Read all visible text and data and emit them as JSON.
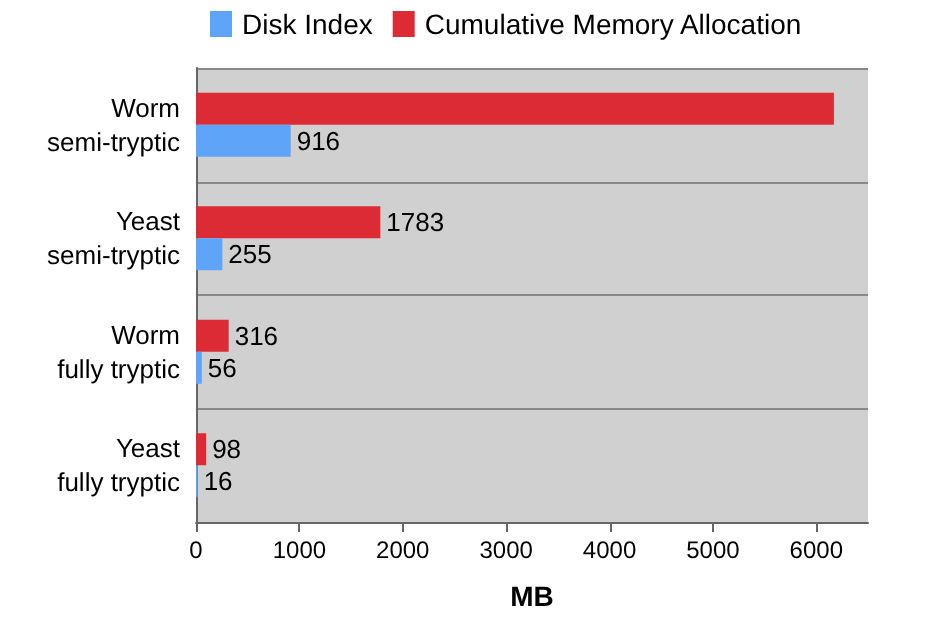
{
  "chart_data": {
    "type": "bar",
    "orientation": "horizontal",
    "xlabel": "MB",
    "categories": [
      "Worm\nsemi-tryptic",
      "Yeast\nsemi-tryptic",
      "Worm\nfully tryptic",
      "Yeast\nfully tryptic"
    ],
    "series": [
      {
        "name": "Disk Index",
        "color": "#5ea4f8",
        "values": [
          916,
          255,
          56,
          16
        ],
        "value_labels": [
          "916",
          "255",
          "56",
          "16"
        ]
      },
      {
        "name": "Cumulative Memory Allocation",
        "color": "#dc2b34",
        "values": [
          6170,
          1783,
          316,
          98
        ],
        "value_labels": [
          null,
          "1783",
          "316",
          "98"
        ]
      }
    ],
    "xlim": [
      0,
      6500
    ],
    "xticks": [
      0,
      1000,
      2000,
      3000,
      4000,
      5000,
      6000
    ],
    "grid": "y",
    "legend": "top"
  }
}
